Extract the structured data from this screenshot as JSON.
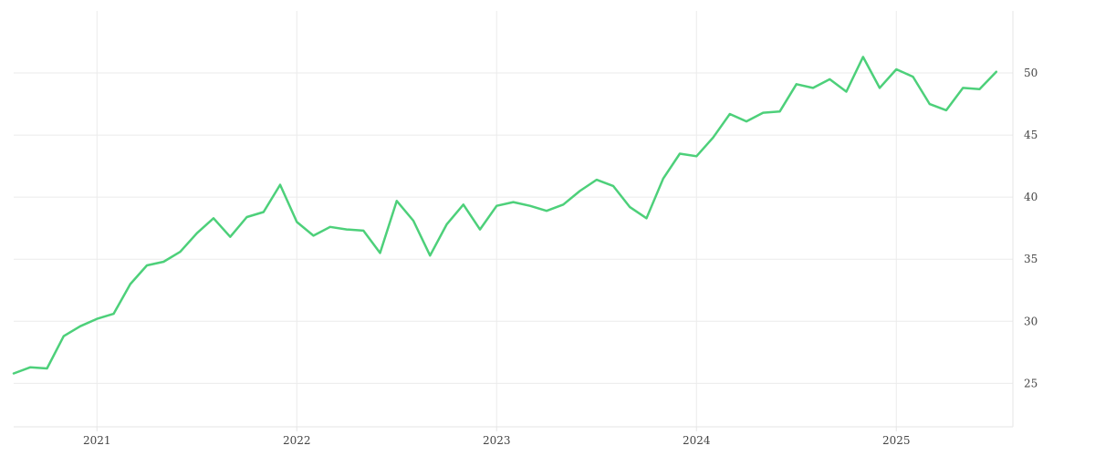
{
  "chart_data": {
    "type": "line",
    "title": "",
    "xlabel": "",
    "ylabel": "",
    "x_ticks": [
      "2021",
      "2022",
      "2023",
      "2024",
      "2025"
    ],
    "y_ticks": [
      25,
      30,
      35,
      40,
      45,
      50
    ],
    "xlim": [
      "2020-08-01",
      "2025-08-01"
    ],
    "ylim": [
      21.5,
      55.0
    ],
    "grid": true,
    "y_axis_position": "right",
    "legend": "none",
    "series": [
      {
        "color": "#4dd07a",
        "x": [
          "2020-08",
          "2020-09",
          "2020-10",
          "2020-11",
          "2020-12",
          "2021-01",
          "2021-02",
          "2021-03",
          "2021-04",
          "2021-05",
          "2021-06",
          "2021-07",
          "2021-08",
          "2021-09",
          "2021-10",
          "2021-11",
          "2021-12",
          "2022-01",
          "2022-02",
          "2022-03",
          "2022-04",
          "2022-05",
          "2022-06",
          "2022-07",
          "2022-08",
          "2022-09",
          "2022-10",
          "2022-11",
          "2022-12",
          "2023-01",
          "2023-02",
          "2023-03",
          "2023-04",
          "2023-05",
          "2023-06",
          "2023-07",
          "2023-08",
          "2023-09",
          "2023-10",
          "2023-11",
          "2023-12",
          "2024-01",
          "2024-02",
          "2024-03",
          "2024-04",
          "2024-05",
          "2024-06",
          "2024-07",
          "2024-08",
          "2024-09",
          "2024-10",
          "2024-11",
          "2024-12",
          "2025-01",
          "2025-02",
          "2025-03",
          "2025-04",
          "2025-05",
          "2025-06",
          "2025-07"
        ],
        "values": [
          25.8,
          26.3,
          26.2,
          28.8,
          29.6,
          30.2,
          30.6,
          33.0,
          34.5,
          34.8,
          35.6,
          37.1,
          38.3,
          36.8,
          38.4,
          38.8,
          41.0,
          38.0,
          36.9,
          37.6,
          37.4,
          37.3,
          35.5,
          39.7,
          38.1,
          35.3,
          37.8,
          39.4,
          37.4,
          39.3,
          39.6,
          39.3,
          38.9,
          39.4,
          40.5,
          41.4,
          40.9,
          39.2,
          38.3,
          41.5,
          43.5,
          43.3,
          44.8,
          46.7,
          46.1,
          46.8,
          46.9,
          49.1,
          48.8,
          49.5,
          48.5,
          51.3,
          48.8,
          50.3,
          49.7,
          47.5,
          47.0,
          48.8,
          48.7,
          50.1
        ]
      }
    ]
  }
}
